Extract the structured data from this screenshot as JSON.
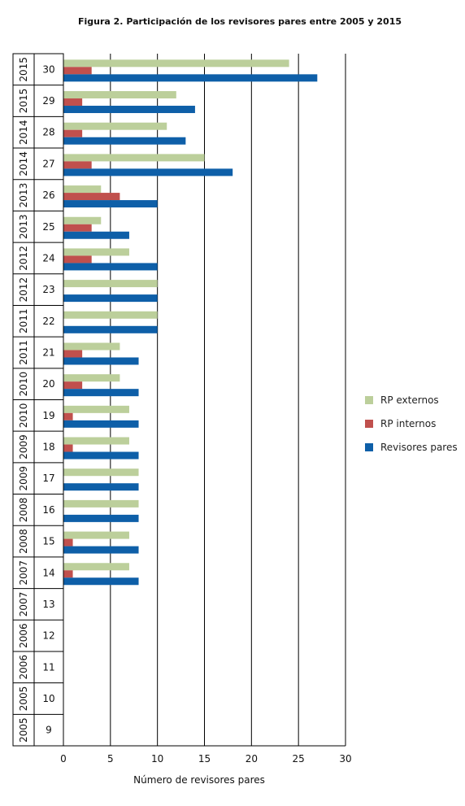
{
  "chart_data": {
    "type": "bar",
    "orientation": "horizontal",
    "title": "Figura 2. Participación de los revisores pares entre 2005 y 2015",
    "xlabel": "Número de revisores pares",
    "ylabel": "",
    "xlim": [
      0,
      30
    ],
    "x_ticks": [
      "0",
      "5",
      "10",
      "15",
      "20",
      "25",
      "30"
    ],
    "grid": "vertical",
    "legend_position": "right",
    "categories": [
      {
        "year": "2015",
        "number": "30"
      },
      {
        "year": "2015",
        "number": "29"
      },
      {
        "year": "2014",
        "number": "28"
      },
      {
        "year": "2014",
        "number": "27"
      },
      {
        "year": "2013",
        "number": "26"
      },
      {
        "year": "2013",
        "number": "25"
      },
      {
        "year": "2012",
        "number": "24"
      },
      {
        "year": "2012",
        "number": "23"
      },
      {
        "year": "2011",
        "number": "22"
      },
      {
        "year": "2011",
        "number": "21"
      },
      {
        "year": "2010",
        "number": "20"
      },
      {
        "year": "2010",
        "number": "19"
      },
      {
        "year": "2009",
        "number": "18"
      },
      {
        "year": "2009",
        "number": "17"
      },
      {
        "year": "2008",
        "number": "16"
      },
      {
        "year": "2008",
        "number": "15"
      },
      {
        "year": "2007",
        "number": "14"
      },
      {
        "year": "2007",
        "number": "13"
      },
      {
        "year": "2006",
        "number": "12"
      },
      {
        "year": "2006",
        "number": "11"
      },
      {
        "year": "2005",
        "number": "10"
      },
      {
        "year": "2005",
        "number": "9"
      }
    ],
    "series": [
      {
        "name": "RP externos",
        "color": "#bccf9b",
        "values": [
          24,
          12,
          11,
          15,
          4,
          4,
          7,
          10,
          10,
          6,
          6,
          7,
          7,
          8,
          8,
          7,
          7,
          0,
          0,
          0,
          0,
          0
        ]
      },
      {
        "name": "RP internos",
        "color": "#c0504d",
        "values": [
          3,
          2,
          2,
          3,
          6,
          3,
          3,
          0,
          0,
          2,
          2,
          1,
          1,
          0,
          0,
          1,
          1,
          0,
          0,
          0,
          0,
          0
        ]
      },
      {
        "name": "Revisores pares",
        "color": "#0e5fa8",
        "values": [
          27,
          14,
          13,
          18,
          10,
          7,
          10,
          10,
          10,
          8,
          8,
          8,
          8,
          8,
          8,
          8,
          8,
          0,
          0,
          0,
          0,
          0
        ]
      }
    ]
  }
}
